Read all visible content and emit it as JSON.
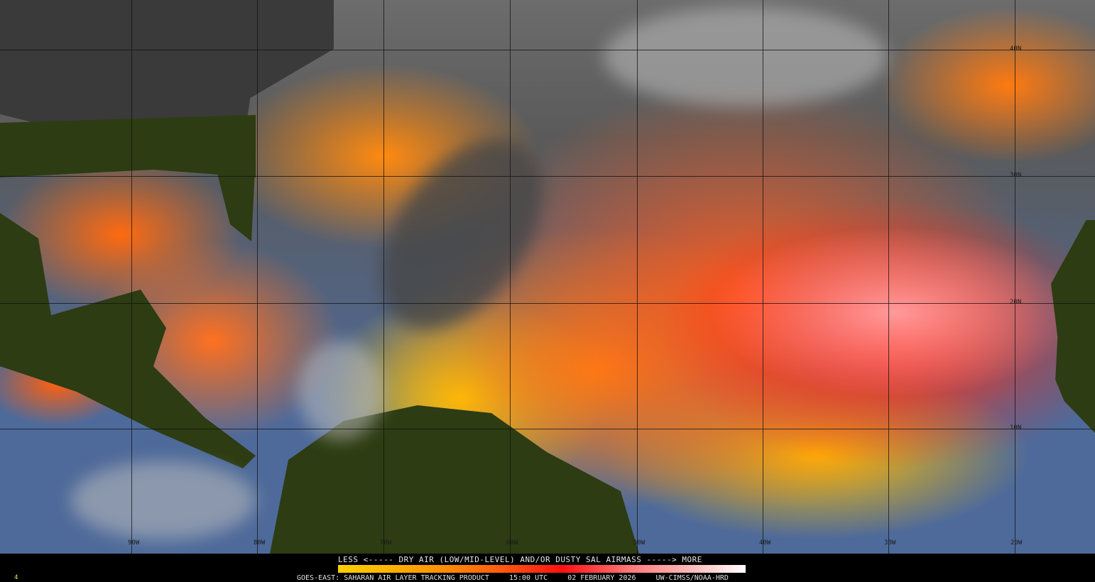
{
  "product": {
    "legend_title": "LESS <----- DRY AIR (LOW/MID-LEVEL) AND/OR DUSTY SAL AIRMASS -----> MORE",
    "colorbar": {
      "low_label": "LESS",
      "high_label": "MORE",
      "colors": [
        "#ffd000",
        "#ff9a00",
        "#ff5a10",
        "#ff1010",
        "#ff7a7a",
        "#ffc0c0",
        "#ffffff"
      ]
    },
    "source": "GOES-EAST: SAHARAN AIR LAYER TRACKING PRODUCT",
    "time": "15:00 UTC",
    "date": "02 FEBRUARY 2026",
    "credit": "UW-CIMSS/NOAA-HRD",
    "corner_mark": "4"
  },
  "grid": {
    "longitudes": [
      "90W",
      "80W",
      "70W",
      "60W",
      "50W",
      "40W",
      "30W",
      "20W"
    ],
    "latitudes": [
      "40N",
      "30N",
      "20N",
      "10N"
    ]
  },
  "colors": {
    "land": "#2d3c12",
    "ocean_clear": "#4e6a9a",
    "cloud": "#9a9a9a"
  }
}
